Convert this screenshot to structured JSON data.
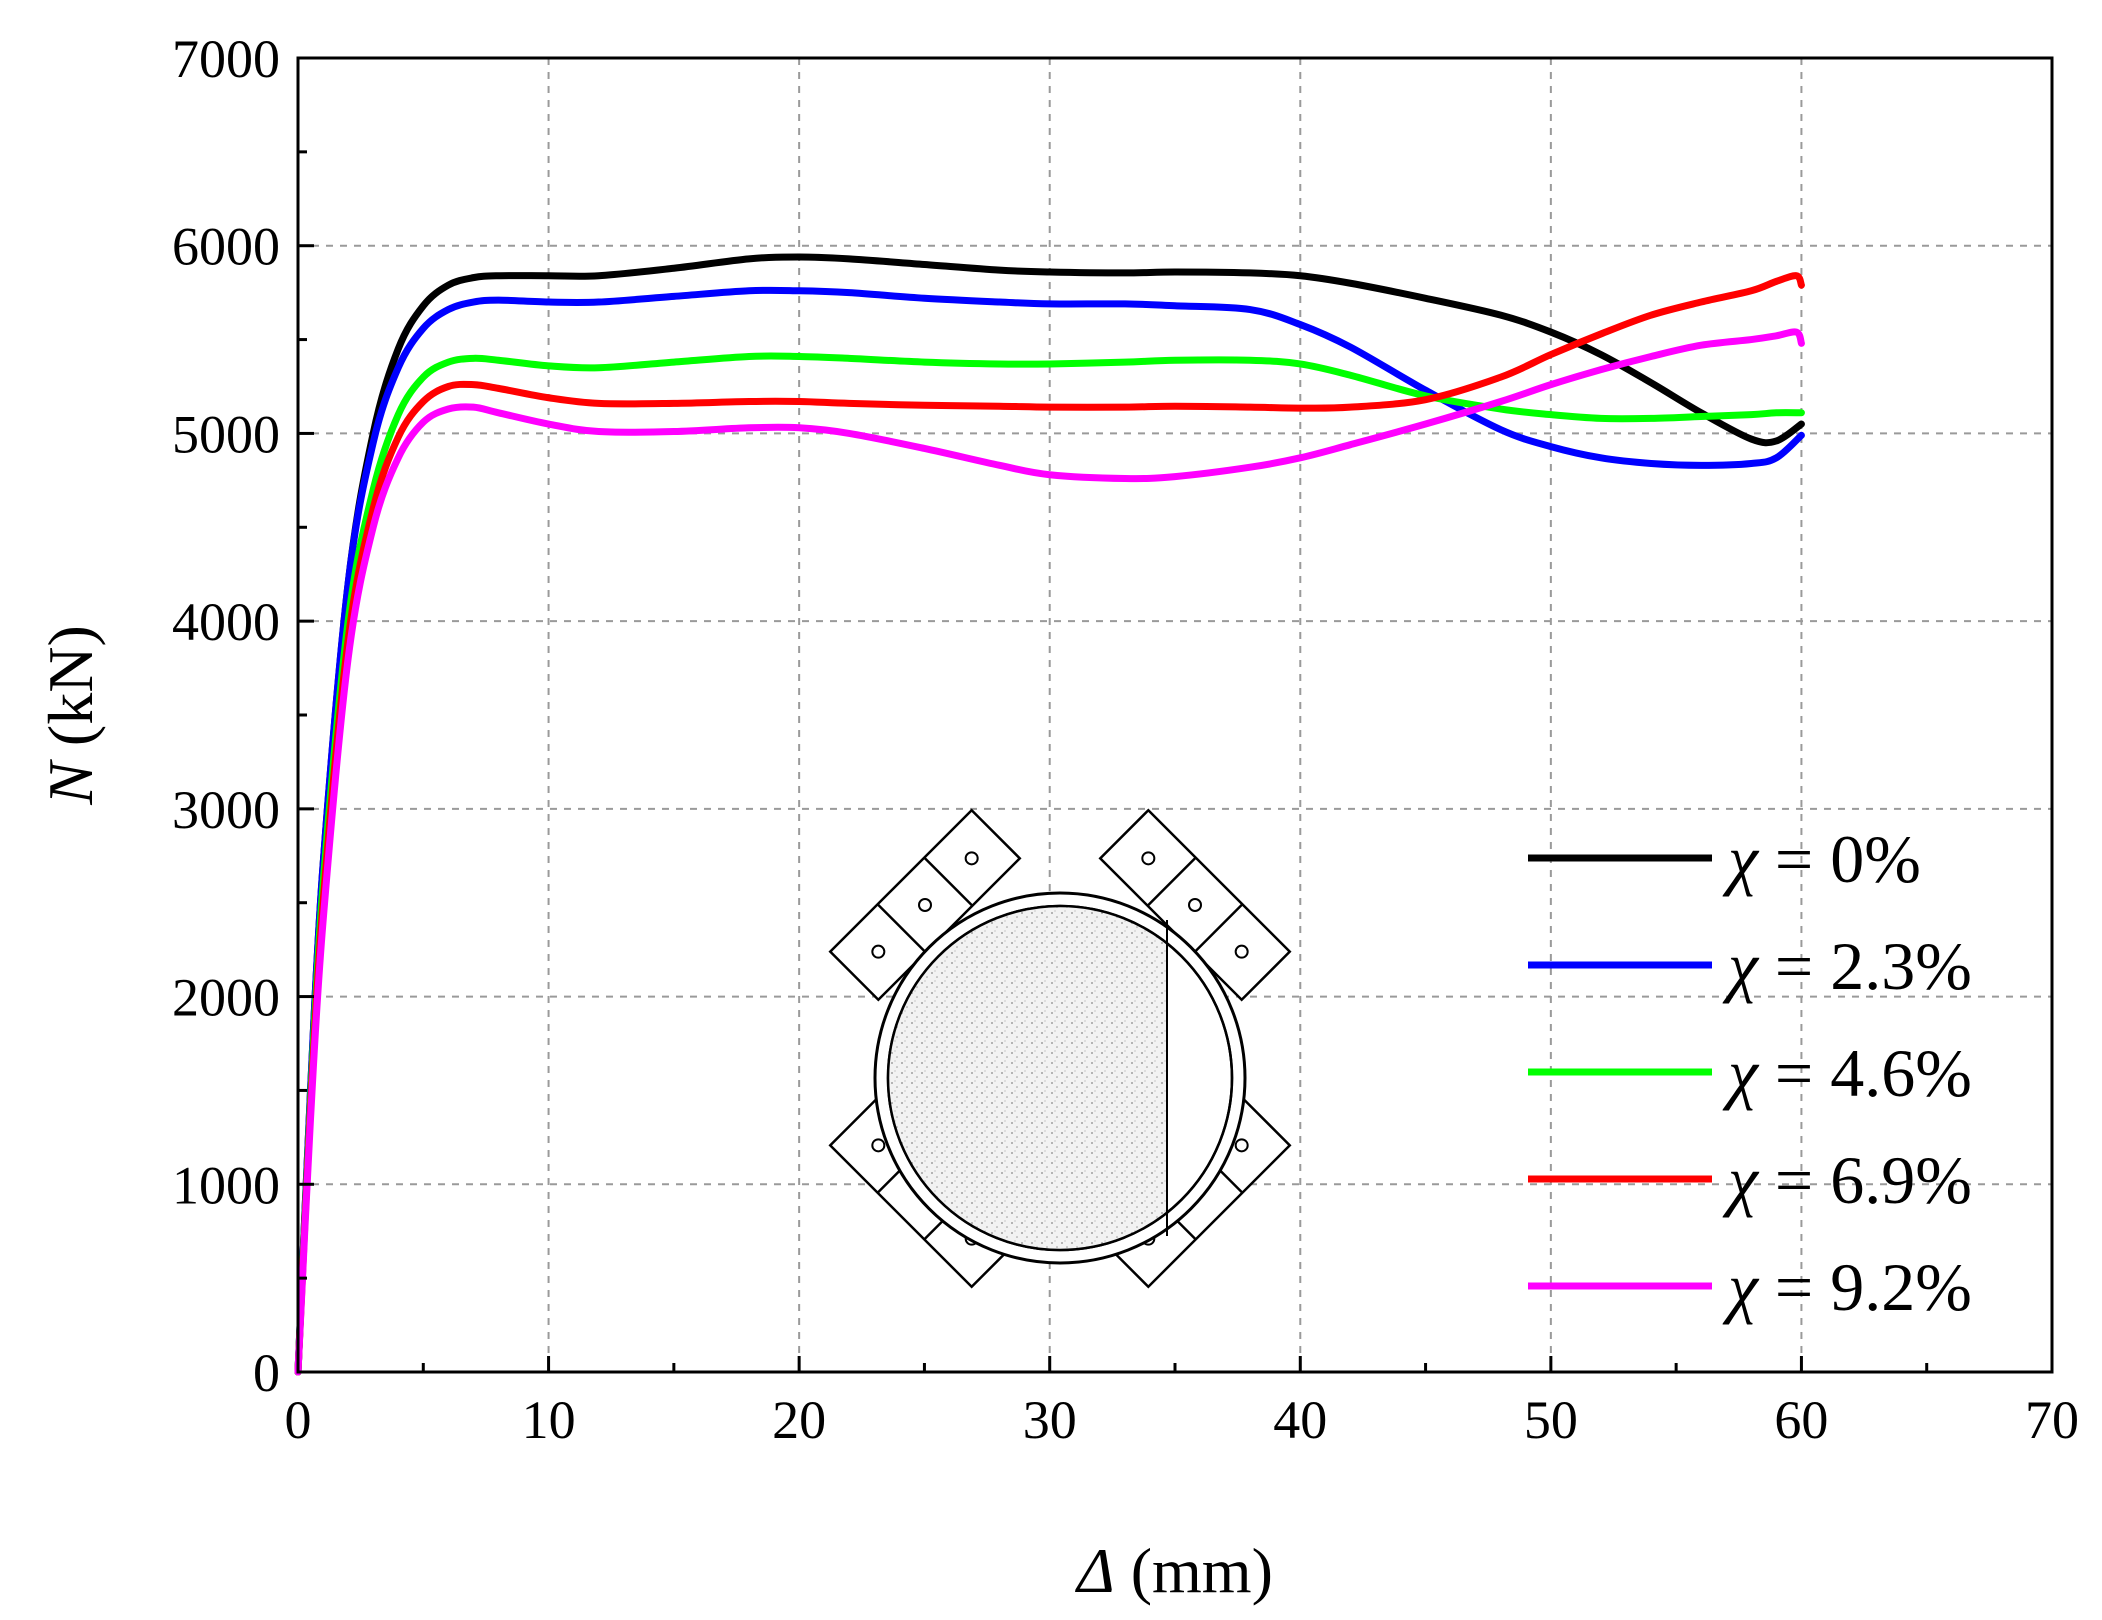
{
  "chart_data": {
    "type": "line",
    "title": "",
    "xlabel": "(mm)",
    "xlabel_symbol": "Δ",
    "ylabel": "(kN)",
    "ylabel_symbol": "N",
    "xlim": [
      0,
      70
    ],
    "ylim": [
      0,
      7000
    ],
    "x_ticks": [
      0,
      10,
      20,
      30,
      40,
      50,
      60,
      70
    ],
    "y_ticks": [
      0,
      1000,
      2000,
      3000,
      4000,
      5000,
      6000,
      7000
    ],
    "x_tick_labels": [
      "0",
      "10",
      "20",
      "30",
      "40",
      "50",
      "60",
      "70"
    ],
    "y_tick_labels": [
      "0",
      "1000",
      "2000",
      "3000",
      "4000",
      "5000",
      "6000",
      "7000"
    ],
    "grid": true,
    "legend_position": "bottom-right",
    "legend_symbol": "χ",
    "series": [
      {
        "name": "χ = 0%",
        "label_value": "= 0%",
        "color": "#000000",
        "x": [
          0,
          0.5,
          1,
          2,
          3,
          4,
          5,
          6,
          7,
          8,
          10,
          12,
          15,
          18,
          20,
          22,
          25,
          28,
          30,
          33,
          35,
          38,
          40,
          42,
          45,
          48,
          50,
          52,
          54,
          56,
          58,
          59,
          60
        ],
        "y": [
          0,
          1500,
          2700,
          4200,
          5000,
          5450,
          5680,
          5790,
          5830,
          5840,
          5840,
          5840,
          5880,
          5930,
          5940,
          5930,
          5900,
          5870,
          5860,
          5855,
          5860,
          5855,
          5840,
          5800,
          5720,
          5630,
          5540,
          5420,
          5270,
          5110,
          4970,
          4960,
          5050
        ]
      },
      {
        "name": "χ = 2.3%",
        "label_value": "= 2.3%",
        "color": "#0000ff",
        "x": [
          0,
          0.5,
          1,
          2,
          3,
          4,
          5,
          6,
          7,
          8,
          10,
          12,
          15,
          18,
          20,
          22,
          25,
          28,
          30,
          33,
          35,
          38,
          40,
          42,
          45,
          48,
          50,
          52,
          54,
          56,
          58,
          59,
          60
        ],
        "y": [
          0,
          1500,
          2700,
          4200,
          4950,
          5350,
          5560,
          5660,
          5700,
          5710,
          5700,
          5700,
          5730,
          5760,
          5760,
          5750,
          5720,
          5700,
          5690,
          5690,
          5680,
          5660,
          5580,
          5460,
          5230,
          5020,
          4930,
          4870,
          4840,
          4830,
          4840,
          4870,
          4990
        ]
      },
      {
        "name": "χ = 4.6%",
        "label_value": "= 4.6%",
        "color": "#00ff00",
        "x": [
          0,
          0.5,
          1,
          2,
          3,
          4,
          5,
          6,
          7,
          8,
          10,
          12,
          15,
          18,
          20,
          22,
          25,
          28,
          30,
          33,
          35,
          38,
          40,
          42,
          45,
          48,
          50,
          52,
          54,
          56,
          58,
          59,
          60
        ],
        "y": [
          0,
          1450,
          2600,
          4000,
          4700,
          5100,
          5300,
          5380,
          5400,
          5390,
          5360,
          5350,
          5380,
          5410,
          5410,
          5400,
          5380,
          5370,
          5370,
          5380,
          5390,
          5390,
          5370,
          5310,
          5200,
          5130,
          5100,
          5080,
          5080,
          5090,
          5100,
          5110,
          5110
        ]
      },
      {
        "name": "χ = 6.9%",
        "label_value": "= 6.9%",
        "color": "#ff0000",
        "x": [
          0,
          0.5,
          1,
          2,
          3,
          4,
          5,
          6,
          7,
          8,
          10,
          12,
          15,
          18,
          20,
          22,
          25,
          28,
          30,
          33,
          35,
          38,
          40,
          42,
          45,
          48,
          50,
          52,
          54,
          56,
          58,
          59,
          59.8,
          60
        ],
        "y": [
          0,
          1400,
          2500,
          3900,
          4600,
          4980,
          5170,
          5250,
          5260,
          5240,
          5190,
          5160,
          5160,
          5170,
          5170,
          5160,
          5150,
          5145,
          5140,
          5140,
          5145,
          5140,
          5135,
          5140,
          5180,
          5300,
          5420,
          5530,
          5630,
          5700,
          5760,
          5810,
          5840,
          5790
        ]
      },
      {
        "name": "χ = 9.2%",
        "label_value": "= 9.2%",
        "color": "#ff00ff",
        "x": [
          0,
          0.5,
          1,
          2,
          3,
          4,
          5,
          6,
          7,
          8,
          10,
          12,
          15,
          18,
          20,
          22,
          25,
          28,
          30,
          33,
          35,
          38,
          40,
          42,
          45,
          48,
          50,
          52,
          54,
          56,
          58,
          59,
          59.8,
          60
        ],
        "y": [
          0,
          1350,
          2400,
          3800,
          4500,
          4870,
          5060,
          5130,
          5140,
          5110,
          5050,
          5010,
          5010,
          5030,
          5030,
          5000,
          4920,
          4830,
          4780,
          4760,
          4770,
          4820,
          4870,
          4940,
          5050,
          5170,
          5260,
          5340,
          5410,
          5470,
          5500,
          5520,
          5540,
          5480
        ]
      }
    ]
  }
}
